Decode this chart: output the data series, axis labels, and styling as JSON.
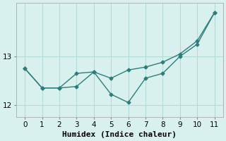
{
  "series1": [
    12.75,
    12.35,
    12.35,
    12.38,
    12.68,
    12.22,
    12.05,
    12.55,
    12.65,
    13.0,
    13.25,
    13.9
  ],
  "series2": [
    12.75,
    12.35,
    12.35,
    12.65,
    12.68,
    12.55,
    12.72,
    12.78,
    12.88,
    13.05,
    13.32,
    13.9
  ],
  "x": [
    0,
    1,
    2,
    3,
    4,
    5,
    6,
    7,
    8,
    9,
    10,
    11
  ],
  "line_color": "#2e7d7a",
  "bg_color": "#d8f0ee",
  "grid_color": "#b5dbd8",
  "xlabel": "Humidex (Indice chaleur)",
  "ylim": [
    11.75,
    14.1
  ],
  "xlim": [
    -0.5,
    11.5
  ],
  "yticks": [
    12,
    13
  ],
  "xticks": [
    0,
    1,
    2,
    3,
    4,
    5,
    6,
    7,
    8,
    9,
    10,
    11
  ],
  "marker": "D",
  "markersize": 2.5,
  "linewidth": 1.0,
  "xlabel_fontsize": 8,
  "tick_fontsize": 7.5
}
